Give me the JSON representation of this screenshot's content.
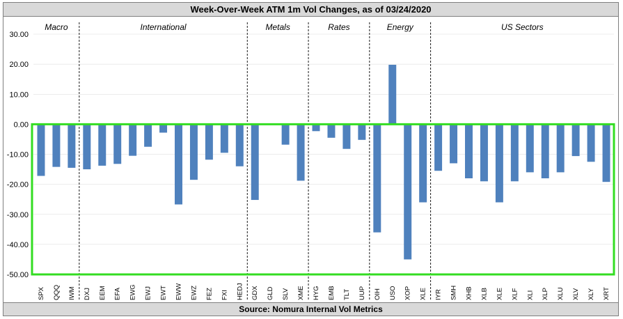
{
  "header": {
    "title": "Week-Over-Week ATM 1m Vol Changes, as of 03/24/2020"
  },
  "footer": {
    "source": "Source: Nomura Internal Vol Metrics"
  },
  "colors": {
    "bar": "#4f81bd",
    "highlight_box": "#33dd22",
    "divider": "#000000",
    "gridline": "#d9d9d9"
  },
  "chart_data": {
    "type": "bar",
    "title": "Week-Over-Week ATM 1m Vol Changes, as of 03/24/2020",
    "xlabel": "",
    "ylabel": "",
    "ylim": [
      -50,
      30
    ],
    "yticks": [
      30,
      20,
      10,
      0,
      -10,
      -20,
      -30,
      -40,
      -50
    ],
    "ytick_labels": [
      "30.00",
      "20.00",
      "10.00",
      "0.00",
      "-10.00",
      "-20.00",
      "-30.00",
      "-40.00",
      "-50.00"
    ],
    "categories": [
      "SPX",
      "QQQ",
      "IWM",
      "DXJ",
      "EEM",
      "EFA",
      "EWG",
      "EWJ",
      "EWT",
      "EWW",
      "EWZ",
      "FEZ",
      "FXI",
      "HEDJ",
      "GDX",
      "GLD",
      "SLV",
      "XME",
      "HYG",
      "EMB",
      "TLT",
      "UUP",
      "OIH",
      "USO",
      "XOP",
      "XLE",
      "IYR",
      "SMH",
      "XHB",
      "XLB",
      "XLE",
      "XLF",
      "XLI",
      "XLP",
      "XLU",
      "XLV",
      "XLY",
      "XRT"
    ],
    "values": [
      -17.2,
      -14.2,
      -14.5,
      -15.0,
      -13.8,
      -13.2,
      -10.5,
      -7.5,
      -2.8,
      -26.7,
      -18.5,
      -11.8,
      -9.5,
      -14.0,
      -25.2,
      0.2,
      -6.8,
      -18.8,
      -2.3,
      -4.5,
      -8.2,
      -5.2,
      -36.0,
      19.8,
      -45.0,
      -26.0,
      -15.5,
      -13.0,
      -18.0,
      -19.0,
      -26.0,
      -19.0,
      -16.0,
      -18.0,
      -16.0,
      -10.6,
      -12.5,
      -19.2
    ],
    "groups": [
      {
        "name": "Macro",
        "start": 0,
        "end": 2
      },
      {
        "name": "International",
        "start": 3,
        "end": 13
      },
      {
        "name": "Metals",
        "start": 14,
        "end": 17
      },
      {
        "name": "Rates",
        "start": 18,
        "end": 21
      },
      {
        "name": "Energy",
        "start": 22,
        "end": 25
      },
      {
        "name": "US Sectors",
        "start": 26,
        "end": 37
      }
    ],
    "highlight": {
      "y_from": 0,
      "y_to": -50,
      "label": "negative region highlight"
    },
    "grid": true,
    "legend": "none"
  }
}
